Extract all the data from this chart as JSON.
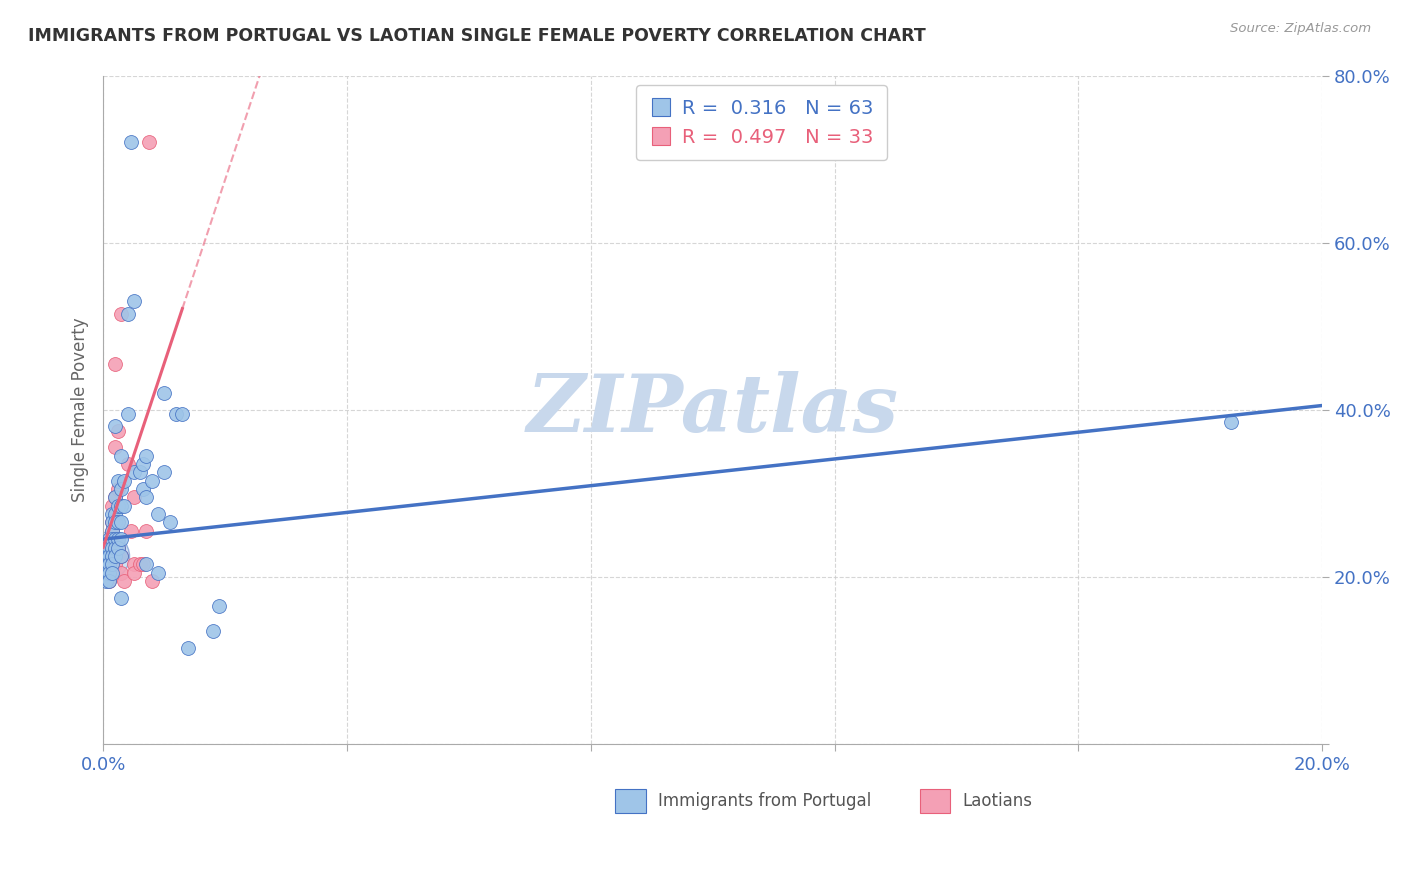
{
  "title": "IMMIGRANTS FROM PORTUGAL VS LAOTIAN SINGLE FEMALE POVERTY CORRELATION CHART",
  "source": "Source: ZipAtlas.com",
  "xlabel": "",
  "ylabel": "Single Female Poverty",
  "xlim": [
    0.0,
    0.2
  ],
  "ylim": [
    0.0,
    0.8
  ],
  "xtick_positions": [
    0.0,
    0.04,
    0.08,
    0.12,
    0.16,
    0.2
  ],
  "xticklabels": [
    "0.0%",
    "",
    "",
    "",
    "",
    "20.0%"
  ],
  "ytick_positions": [
    0.0,
    0.2,
    0.4,
    0.6,
    0.8
  ],
  "yticklabels": [
    "",
    "20.0%",
    "40.0%",
    "60.0%",
    "80.0%"
  ],
  "blue_scatter": [
    [
      0.0005,
      0.235
    ],
    [
      0.0005,
      0.225
    ],
    [
      0.0005,
      0.215
    ],
    [
      0.0005,
      0.205
    ],
    [
      0.0005,
      0.195
    ],
    [
      0.001,
      0.245
    ],
    [
      0.001,
      0.235
    ],
    [
      0.001,
      0.225
    ],
    [
      0.001,
      0.215
    ],
    [
      0.001,
      0.205
    ],
    [
      0.001,
      0.195
    ],
    [
      0.0015,
      0.275
    ],
    [
      0.0015,
      0.265
    ],
    [
      0.0015,
      0.255
    ],
    [
      0.0015,
      0.245
    ],
    [
      0.0015,
      0.235
    ],
    [
      0.0015,
      0.225
    ],
    [
      0.0015,
      0.215
    ],
    [
      0.0015,
      0.205
    ],
    [
      0.002,
      0.38
    ],
    [
      0.002,
      0.295
    ],
    [
      0.002,
      0.275
    ],
    [
      0.002,
      0.265
    ],
    [
      0.002,
      0.245
    ],
    [
      0.002,
      0.235
    ],
    [
      0.002,
      0.225
    ],
    [
      0.0025,
      0.315
    ],
    [
      0.0025,
      0.285
    ],
    [
      0.0025,
      0.265
    ],
    [
      0.0025,
      0.245
    ],
    [
      0.0025,
      0.235
    ],
    [
      0.003,
      0.345
    ],
    [
      0.003,
      0.305
    ],
    [
      0.003,
      0.285
    ],
    [
      0.003,
      0.265
    ],
    [
      0.003,
      0.245
    ],
    [
      0.003,
      0.225
    ],
    [
      0.003,
      0.175
    ],
    [
      0.0035,
      0.315
    ],
    [
      0.0035,
      0.285
    ],
    [
      0.004,
      0.515
    ],
    [
      0.004,
      0.395
    ],
    [
      0.0045,
      0.72
    ],
    [
      0.005,
      0.53
    ],
    [
      0.005,
      0.325
    ],
    [
      0.006,
      0.325
    ],
    [
      0.0065,
      0.335
    ],
    [
      0.0065,
      0.305
    ],
    [
      0.007,
      0.345
    ],
    [
      0.007,
      0.295
    ],
    [
      0.007,
      0.215
    ],
    [
      0.008,
      0.315
    ],
    [
      0.009,
      0.275
    ],
    [
      0.009,
      0.205
    ],
    [
      0.01,
      0.42
    ],
    [
      0.01,
      0.325
    ],
    [
      0.011,
      0.265
    ],
    [
      0.012,
      0.395
    ],
    [
      0.013,
      0.395
    ],
    [
      0.014,
      0.115
    ],
    [
      0.018,
      0.135
    ],
    [
      0.019,
      0.165
    ],
    [
      0.185,
      0.385
    ]
  ],
  "pink_scatter": [
    [
      0.0005,
      0.225
    ],
    [
      0.0005,
      0.215
    ],
    [
      0.001,
      0.235
    ],
    [
      0.001,
      0.225
    ],
    [
      0.001,
      0.215
    ],
    [
      0.001,
      0.205
    ],
    [
      0.001,
      0.195
    ],
    [
      0.0015,
      0.285
    ],
    [
      0.0015,
      0.265
    ],
    [
      0.0015,
      0.255
    ],
    [
      0.0015,
      0.245
    ],
    [
      0.002,
      0.455
    ],
    [
      0.002,
      0.355
    ],
    [
      0.002,
      0.295
    ],
    [
      0.002,
      0.225
    ],
    [
      0.002,
      0.215
    ],
    [
      0.0025,
      0.375
    ],
    [
      0.0025,
      0.305
    ],
    [
      0.0025,
      0.235
    ],
    [
      0.003,
      0.515
    ],
    [
      0.003,
      0.225
    ],
    [
      0.003,
      0.205
    ],
    [
      0.0035,
      0.195
    ],
    [
      0.004,
      0.335
    ],
    [
      0.0045,
      0.255
    ],
    [
      0.005,
      0.295
    ],
    [
      0.005,
      0.215
    ],
    [
      0.005,
      0.205
    ],
    [
      0.006,
      0.215
    ],
    [
      0.0065,
      0.215
    ],
    [
      0.007,
      0.255
    ],
    [
      0.0075,
      0.72
    ],
    [
      0.008,
      0.195
    ]
  ],
  "blue_line_color": "#4472C4",
  "pink_line_color": "#E8607A",
  "blue_dot_color": "#9FC5E8",
  "pink_dot_color": "#F4A0B5",
  "watermark_text": "ZIPatlas",
  "watermark_color": "#C8D8EC",
  "grid_color": "#CCCCCC",
  "axis_label_color": "#4472C4",
  "ylabel_color": "#666666",
  "title_color": "#333333",
  "background_color": "#FFFFFF",
  "legend_blue_label": "R =  0.316   N = 63",
  "legend_pink_label": "R =  0.497   N = 33",
  "bottom_legend_blue": "Immigrants from Portugal",
  "bottom_legend_pink": "Laotians"
}
